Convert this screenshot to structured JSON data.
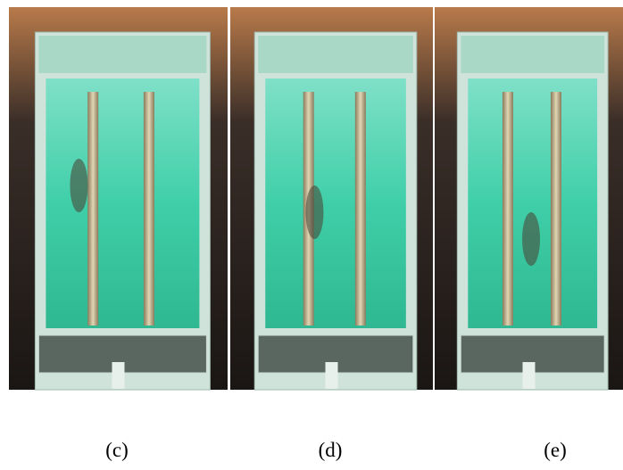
{
  "panels": [
    {
      "label": "(c)"
    },
    {
      "label": "(d)"
    },
    {
      "label": "(e)"
    }
  ]
}
